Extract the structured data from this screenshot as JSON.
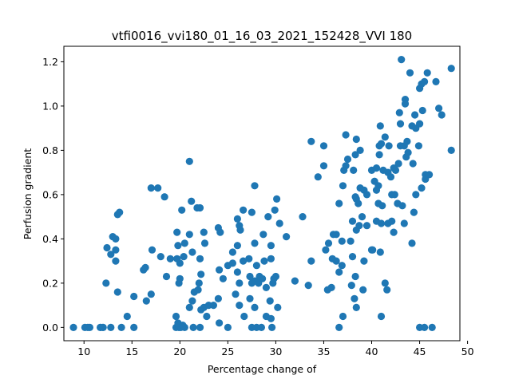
{
  "chart_data": {
    "type": "scatter",
    "title": "vtfi0016_vvi180_01_16_03_2021_152428_VVI 180",
    "xlabel": "Percentage change of",
    "ylabel": "Perfusion gradient",
    "xlim": [
      7.9,
      49.2
    ],
    "ylim": [
      -0.06,
      1.27
    ],
    "xticks": [
      10,
      15,
      20,
      25,
      30,
      35,
      40,
      45,
      50
    ],
    "yticks": [
      0.0,
      0.2,
      0.4,
      0.6,
      0.8,
      1.0,
      1.2
    ],
    "grid": false,
    "marker_color": "#1f77b4",
    "points": [
      [
        8.9,
        0.0
      ],
      [
        10.1,
        0.0
      ],
      [
        10.4,
        0.0
      ],
      [
        10.6,
        0.0
      ],
      [
        11.7,
        0.0
      ],
      [
        12.0,
        0.0
      ],
      [
        12.8,
        0.0
      ],
      [
        13.9,
        0.0
      ],
      [
        15.2,
        0.0
      ],
      [
        19.6,
        0.0
      ],
      [
        19.9,
        0.0
      ],
      [
        20.1,
        0.0
      ],
      [
        20.5,
        0.0
      ],
      [
        21.4,
        0.0
      ],
      [
        22.1,
        0.0
      ],
      [
        25.0,
        0.0
      ],
      [
        27.5,
        0.0
      ],
      [
        28.0,
        0.0
      ],
      [
        28.5,
        0.0
      ],
      [
        29.6,
        0.0
      ],
      [
        36.6,
        0.0
      ],
      [
        45.0,
        0.0
      ],
      [
        45.5,
        0.0
      ],
      [
        46.3,
        0.0
      ],
      [
        19.8,
        0.02
      ],
      [
        20.3,
        0.01
      ],
      [
        24.1,
        0.02
      ],
      [
        26.7,
        0.05
      ],
      [
        29.0,
        0.05
      ],
      [
        29.5,
        0.04
      ],
      [
        37.0,
        0.05
      ],
      [
        41.0,
        0.05
      ],
      [
        19.6,
        0.05
      ],
      [
        14.5,
        0.05
      ],
      [
        16.5,
        0.12
      ],
      [
        15.2,
        0.14
      ],
      [
        17.0,
        0.15
      ],
      [
        13.5,
        0.16
      ],
      [
        12.3,
        0.2
      ],
      [
        19.9,
        0.2
      ],
      [
        20.0,
        0.22
      ],
      [
        21.0,
        0.09
      ],
      [
        21.3,
        0.12
      ],
      [
        22.2,
        0.08
      ],
      [
        22.5,
        0.09
      ],
      [
        22.8,
        0.05
      ],
      [
        23.0,
        0.1
      ],
      [
        23.5,
        0.1
      ],
      [
        22.0,
        0.2
      ],
      [
        22.2,
        0.24
      ],
      [
        21.5,
        0.16
      ],
      [
        21.9,
        0.17
      ],
      [
        24.0,
        0.13
      ],
      [
        25.0,
        0.28
      ],
      [
        25.5,
        0.29
      ],
      [
        26.0,
        0.25
      ],
      [
        26.2,
        0.2
      ],
      [
        25.8,
        0.15
      ],
      [
        26.2,
        0.1
      ],
      [
        27.3,
        0.23
      ],
      [
        27.5,
        0.2
      ],
      [
        27.8,
        0.21
      ],
      [
        28.0,
        0.28
      ],
      [
        28.3,
        0.23
      ],
      [
        28.6,
        0.22
      ],
      [
        29.0,
        0.18
      ],
      [
        29.4,
        0.12
      ],
      [
        29.8,
        0.22
      ],
      [
        30.0,
        0.23
      ],
      [
        29.7,
        0.2
      ],
      [
        30.2,
        0.09
      ],
      [
        27.3,
        0.13
      ],
      [
        27.8,
        0.09
      ],
      [
        28.2,
        0.2
      ],
      [
        26.6,
        0.3
      ],
      [
        27.2,
        0.31
      ],
      [
        27.8,
        0.38
      ],
      [
        28.8,
        0.3
      ],
      [
        29.5,
        0.31
      ],
      [
        29.5,
        0.37
      ],
      [
        26.0,
        0.37
      ],
      [
        25.5,
        0.34
      ],
      [
        24.0,
        0.45
      ],
      [
        24.2,
        0.43
      ],
      [
        22.5,
        0.43
      ],
      [
        22.6,
        0.38
      ],
      [
        22.1,
        0.31
      ],
      [
        21.3,
        0.34
      ],
      [
        21.0,
        0.42
      ],
      [
        20.5,
        0.38
      ],
      [
        20.4,
        0.32
      ],
      [
        20.0,
        0.29
      ],
      [
        19.7,
        0.31
      ],
      [
        19.0,
        0.31
      ],
      [
        18.6,
        0.23
      ],
      [
        18.0,
        0.32
      ],
      [
        17.1,
        0.35
      ],
      [
        16.2,
        0.26
      ],
      [
        16.4,
        0.27
      ],
      [
        13.0,
        0.41
      ],
      [
        13.3,
        0.4
      ],
      [
        13.3,
        0.35
      ],
      [
        13.3,
        0.3
      ],
      [
        12.4,
        0.36
      ],
      [
        12.8,
        0.33
      ],
      [
        13.5,
        0.51
      ],
      [
        13.7,
        0.52
      ],
      [
        17.0,
        0.63
      ],
      [
        17.7,
        0.63
      ],
      [
        18.4,
        0.59
      ],
      [
        19.7,
        0.43
      ],
      [
        20.2,
        0.53
      ],
      [
        21.8,
        0.54
      ],
      [
        22.1,
        0.54
      ],
      [
        21.0,
        0.75
      ],
      [
        21.2,
        0.57
      ],
      [
        19.8,
        0.37
      ],
      [
        24.1,
        0.26
      ],
      [
        24.5,
        0.22
      ],
      [
        26.3,
        0.44
      ],
      [
        26.2,
        0.46
      ],
      [
        26.0,
        0.49
      ],
      [
        26.6,
        0.53
      ],
      [
        27.5,
        0.52
      ],
      [
        27.8,
        0.64
      ],
      [
        28.7,
        0.42
      ],
      [
        29.2,
        0.5
      ],
      [
        29.9,
        0.53
      ],
      [
        30.1,
        0.58
      ],
      [
        30.4,
        0.47
      ],
      [
        31.1,
        0.41
      ],
      [
        32.0,
        0.21
      ],
      [
        32.8,
        0.5
      ],
      [
        33.4,
        0.19
      ],
      [
        33.7,
        0.3
      ],
      [
        34.4,
        0.68
      ],
      [
        33.7,
        0.84
      ],
      [
        35.0,
        0.82
      ],
      [
        35.0,
        0.73
      ],
      [
        35.5,
        0.38
      ],
      [
        35.2,
        0.35
      ],
      [
        35.4,
        0.17
      ],
      [
        35.8,
        0.18
      ],
      [
        36.0,
        0.42
      ],
      [
        36.3,
        0.42
      ],
      [
        35.9,
        0.31
      ],
      [
        36.3,
        0.3
      ],
      [
        36.6,
        0.25
      ],
      [
        36.9,
        0.28
      ],
      [
        36.9,
        0.39
      ],
      [
        36.6,
        0.56
      ],
      [
        37.0,
        0.64
      ],
      [
        37.1,
        0.71
      ],
      [
        37.3,
        0.73
      ],
      [
        37.5,
        0.76
      ],
      [
        37.3,
        0.87
      ],
      [
        37.8,
        0.39
      ],
      [
        37.9,
        0.19
      ],
      [
        38.0,
        0.32
      ],
      [
        38.2,
        0.13
      ],
      [
        38.3,
        0.23
      ],
      [
        38.4,
        0.09
      ],
      [
        38.0,
        0.48
      ],
      [
        38.4,
        0.44
      ],
      [
        38.7,
        0.46
      ],
      [
        38.3,
        0.59
      ],
      [
        38.4,
        0.58
      ],
      [
        38.1,
        0.71
      ],
      [
        38.3,
        0.78
      ],
      [
        38.4,
        0.85
      ],
      [
        38.8,
        0.8
      ],
      [
        38.6,
        0.56
      ],
      [
        39.0,
        0.5
      ],
      [
        38.8,
        0.63
      ],
      [
        39.2,
        0.62
      ],
      [
        39.5,
        0.6
      ],
      [
        39.5,
        0.46
      ],
      [
        39.2,
        0.3
      ],
      [
        39.1,
        0.17
      ],
      [
        40.0,
        0.71
      ],
      [
        40.3,
        0.66
      ],
      [
        40.5,
        0.72
      ],
      [
        40.7,
        0.64
      ],
      [
        40.5,
        0.62
      ],
      [
        40.0,
        0.35
      ],
      [
        40.1,
        0.35
      ],
      [
        40.5,
        0.48
      ],
      [
        40.7,
        0.56
      ],
      [
        41.1,
        0.55
      ],
      [
        41.0,
        0.47
      ],
      [
        40.9,
        0.34
      ],
      [
        41.4,
        0.2
      ],
      [
        41.6,
        0.17
      ],
      [
        41.7,
        0.47
      ],
      [
        40.8,
        0.78
      ],
      [
        40.8,
        0.82
      ],
      [
        41.0,
        0.83
      ],
      [
        40.9,
        0.91
      ],
      [
        41.4,
        0.86
      ],
      [
        41.8,
        0.82
      ],
      [
        41.7,
        0.7
      ],
      [
        41.2,
        0.71
      ],
      [
        42.0,
        0.68
      ],
      [
        42.3,
        0.72
      ],
      [
        42.5,
        0.71
      ],
      [
        42.8,
        0.74
      ],
      [
        42.1,
        0.6
      ],
      [
        42.4,
        0.6
      ],
      [
        42.7,
        0.56
      ],
      [
        42.1,
        0.48
      ],
      [
        42.3,
        0.43
      ],
      [
        43.2,
        0.55
      ],
      [
        43.4,
        0.47
      ],
      [
        43.0,
        0.82
      ],
      [
        43.4,
        0.82
      ],
      [
        43.7,
        0.84
      ],
      [
        43.8,
        0.79
      ],
      [
        43.6,
        0.77
      ],
      [
        43.0,
        0.92
      ],
      [
        42.9,
        0.97
      ],
      [
        43.5,
        1.03
      ],
      [
        43.5,
        1.01
      ],
      [
        43.1,
        1.21
      ],
      [
        44.2,
        0.91
      ],
      [
        44.6,
        0.9
      ],
      [
        44.0,
        1.15
      ],
      [
        44.5,
        0.96
      ],
      [
        44.9,
        0.82
      ],
      [
        44.3,
        0.74
      ],
      [
        44.6,
        0.6
      ],
      [
        44.4,
        0.52
      ],
      [
        45.0,
        1.08
      ],
      [
        45.2,
        1.1
      ],
      [
        45.3,
        0.98
      ],
      [
        45.0,
        0.92
      ],
      [
        45.8,
        1.15
      ],
      [
        45.5,
        1.11
      ],
      [
        45.6,
        0.69
      ],
      [
        45.2,
        0.63
      ],
      [
        45.6,
        0.67
      ],
      [
        46.0,
        0.69
      ],
      [
        44.2,
        0.38
      ],
      [
        46.7,
        1.11
      ],
      [
        47.0,
        0.99
      ],
      [
        47.3,
        0.96
      ],
      [
        48.3,
        1.17
      ],
      [
        48.3,
        0.8
      ]
    ]
  }
}
